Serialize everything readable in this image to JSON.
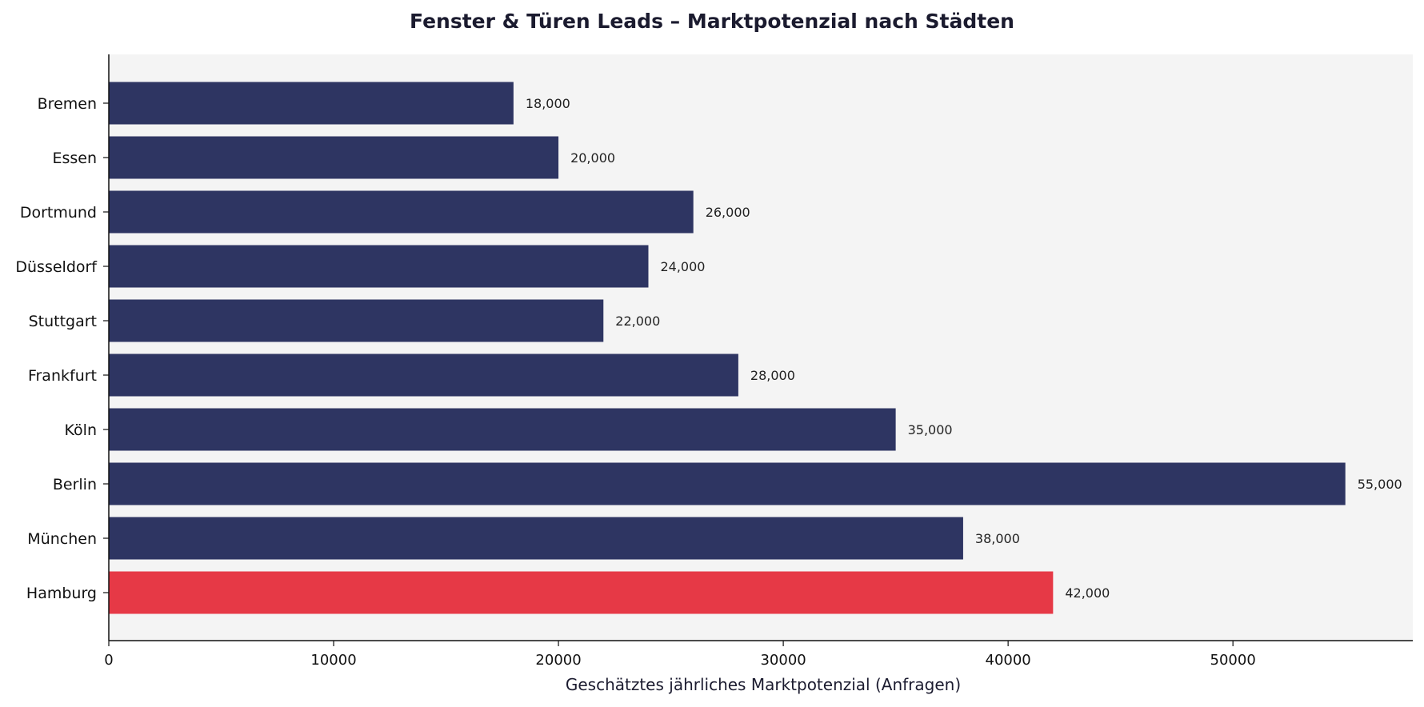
{
  "chart_data": {
    "type": "bar",
    "orientation": "horizontal",
    "title": "Fenster & Türen Leads – Marktpotenzial nach Städten",
    "xlabel": "Geschätztes jährliches Marktpotenzial (Anfragen)",
    "ylabel": "",
    "categories": [
      "Hamburg",
      "München",
      "Berlin",
      "Köln",
      "Frankfurt",
      "Stuttgart",
      "Düsseldorf",
      "Dortmund",
      "Essen",
      "Bremen"
    ],
    "values": [
      42000,
      38000,
      55000,
      35000,
      28000,
      22000,
      24000,
      26000,
      20000,
      18000
    ],
    "value_labels": [
      "42,000",
      "38,000",
      "55,000",
      "35,000",
      "28,000",
      "22,000",
      "24,000",
      "26,000",
      "20,000",
      "18,000"
    ],
    "highlight_category": "Hamburg",
    "xlim": [
      0,
      58000
    ],
    "xticks": [
      0,
      10000,
      20000,
      30000,
      40000,
      50000
    ],
    "xtick_labels": [
      "0",
      "10000",
      "20000",
      "30000",
      "40000",
      "50000"
    ],
    "grid": false,
    "colors": {
      "bar": "#2e3562",
      "highlight": "#e63946",
      "plot_background": "#f4f4f4",
      "axis": "#111111"
    }
  }
}
